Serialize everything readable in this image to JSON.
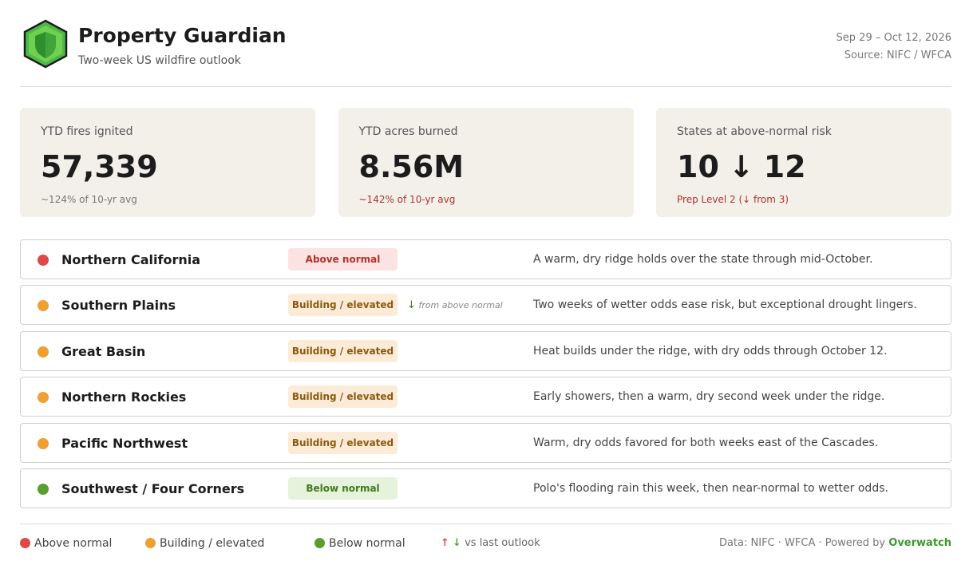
{
  "header": {
    "title": "Property Guardian",
    "subtitle": "Two-week US wildfire outlook",
    "dates": "Sep 29 – Oct 12, 2026",
    "source": "Source: NIFC / WFCA"
  },
  "stats": [
    {
      "label": "YTD fires ignited",
      "value": "57,339",
      "note": "~124% of 10-yr avg",
      "note_color": "#777777"
    },
    {
      "label": "YTD acres burned",
      "value": "8.56M",
      "note": "~142% of 10-yr avg",
      "note_color": "#b3312b"
    },
    {
      "label": "States at above-normal risk",
      "value": "10",
      "arrow": "↓",
      "value_to": "12",
      "note": "Prep Level 2 (↓ from 3)",
      "note_color": "#b3312b"
    }
  ],
  "regions": [
    {
      "name": "Northern California",
      "status": "Above normal",
      "description": "A warm, dry ridge holds over the state through mid-October."
    },
    {
      "name": "Southern Plains",
      "status": "Building / elevated",
      "change": {
        "arrow": "↓",
        "text": "from above normal"
      },
      "description": "Two weeks of wetter odds ease risk, but exceptional drought lingers."
    },
    {
      "name": "Great Basin",
      "status": "Building / elevated",
      "description": "Heat builds under the ridge, with dry odds through October 12."
    },
    {
      "name": "Northern Rockies",
      "status": "Building / elevated",
      "description": "Early showers, then a warm, dry second week under the ridge."
    },
    {
      "name": "Pacific Northwest",
      "status": "Building / elevated",
      "description": "Warm, dry odds favored for both weeks east of the Cascades."
    },
    {
      "name": "Southwest / Four Corners",
      "status": "Below normal",
      "description": "Polo's flooding rain this week, then near-normal to wetter odds."
    }
  ],
  "legend": {
    "items": [
      {
        "label": "Above normal",
        "color": "#e04848",
        "badge_bg": "#fbe3e3",
        "badge_text": "#b3312b"
      },
      {
        "label": "Building / elevated",
        "color": "#f0a030",
        "badge_bg": "#fcebd6",
        "badge_text": "#8a5a10"
      },
      {
        "label": "Below normal",
        "color": "#5a9e2f",
        "badge_bg": "#e6f2dc",
        "badge_text": "#3c7a1c"
      }
    ],
    "up": "↑",
    "down": "↓",
    "change_label": "vs last outlook"
  },
  "footer": {
    "data": "Data: NIFC",
    "sep": "·",
    "source2": "WFCA",
    "powered": "Powered by",
    "brand": "Overwatch"
  }
}
